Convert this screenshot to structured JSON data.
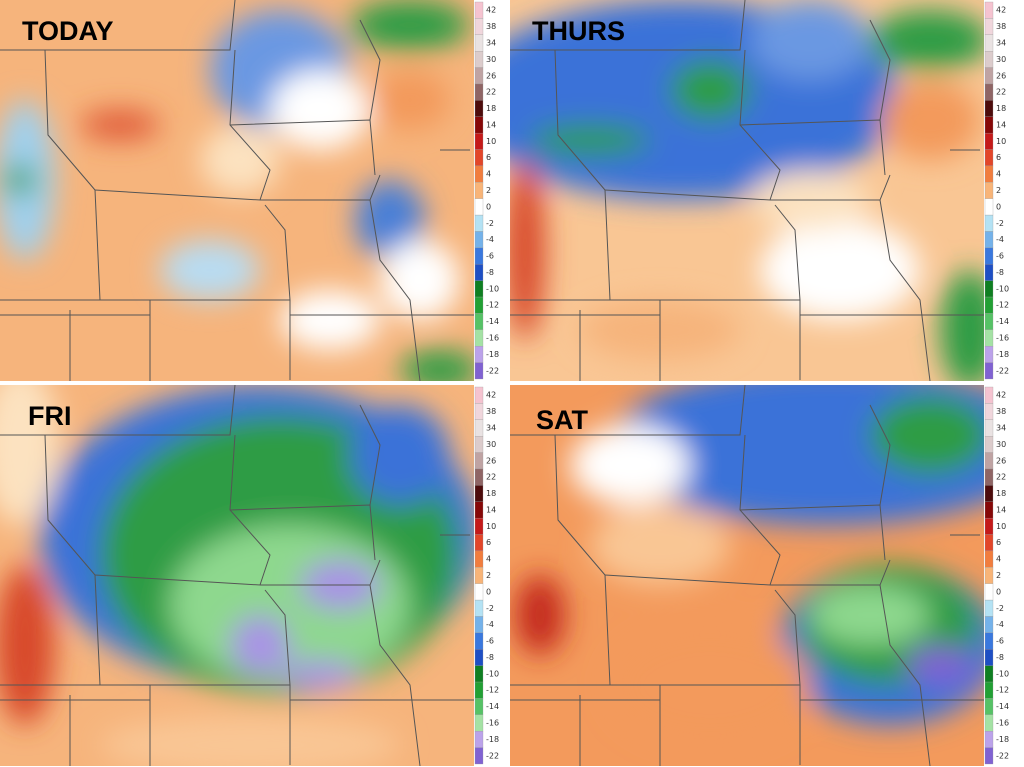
{
  "panels": [
    {
      "label": "TODAY"
    },
    {
      "label": "THURS"
    },
    {
      "label": "FRI"
    },
    {
      "label": "SAT"
    }
  ],
  "colorbar": {
    "labels": [
      42,
      38,
      34,
      30,
      26,
      22,
      18,
      14,
      10,
      6,
      4,
      2,
      0,
      -2,
      -4,
      -6,
      -8,
      -10,
      -12,
      -14,
      -16,
      -18,
      -22
    ],
    "colors": [
      "#f5c3d0",
      "#f0d6dc",
      "#e9e2e2",
      "#dccccc",
      "#bfa3a3",
      "#8f6565",
      "#4d0c0c",
      "#860808",
      "#c41a1a",
      "#e2462a",
      "#f17d3e",
      "#f8b478",
      "#ffffff",
      "#b4e2f4",
      "#74b2ea",
      "#3a78de",
      "#1e4fc4",
      "#0f7f22",
      "#22a034",
      "#56c266",
      "#a4e2a4",
      "#bba2ea",
      "#8062d2"
    ]
  }
}
